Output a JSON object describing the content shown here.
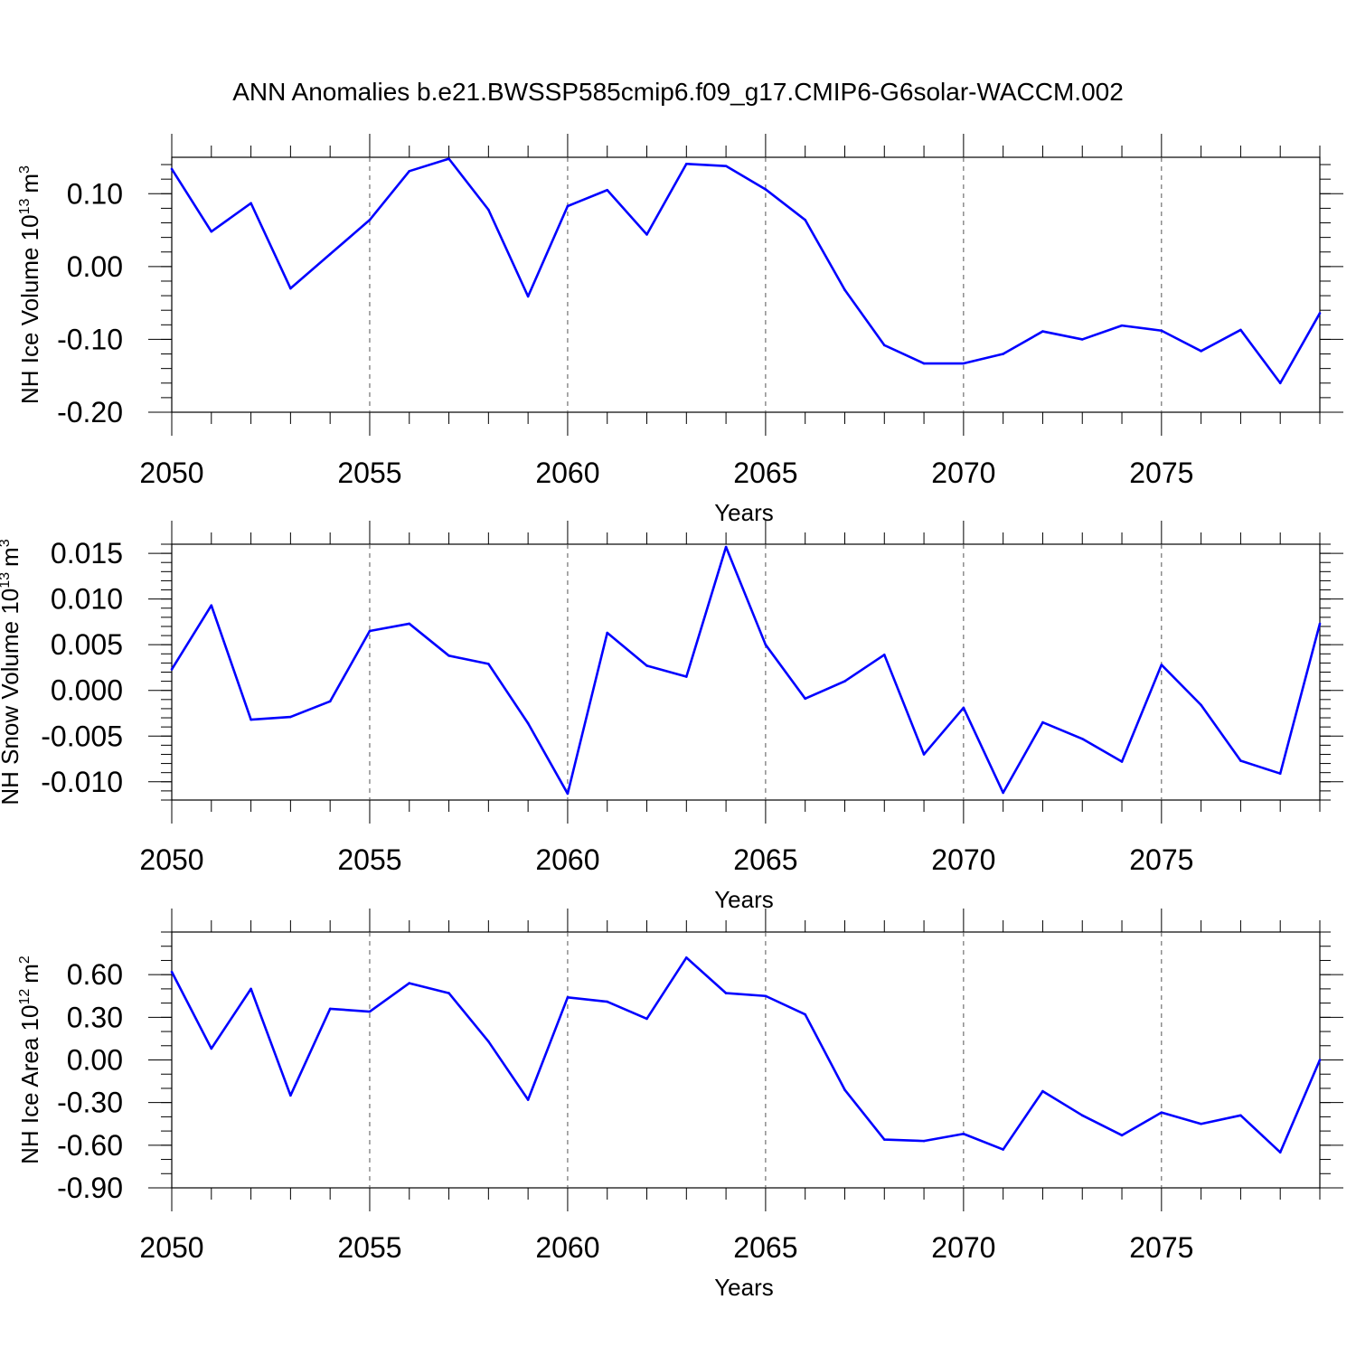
{
  "title": "ANN Anomalies b.e21.BWSSP585cmip6.f09_g17.CMIP6-G6solar-WACCM.002",
  "colors": {
    "series": "#0000ff",
    "frame": "#000000",
    "grid": "#555555"
  },
  "chart_data": [
    {
      "type": "line",
      "title": "ANN Anomalies b.e21.BWSSP585cmip6.f09_g17.CMIP6-G6solar-WACCM.002",
      "xlabel": "Years",
      "ylabel": "NH Ice Volume 10",
      "ylabel_exp": "13",
      "ylabel_unit": "m",
      "ylabel_unit_exp": "3",
      "xlim": [
        2050,
        2079
      ],
      "ylim": [
        -0.2,
        0.15
      ],
      "xticks": [
        "2050",
        "2055",
        "2060",
        "2065",
        "2070",
        "2075"
      ],
      "yticks": [
        "0.10",
        "0.00",
        "-0.10",
        "-0.20"
      ],
      "ytick_values": [
        0.1,
        0.0,
        -0.1,
        -0.2
      ],
      "ytick_minor_step": 0.02,
      "grid": "x-dashed",
      "x": [
        2050,
        2051,
        2052,
        2053,
        2054,
        2055,
        2056,
        2057,
        2058,
        2059,
        2060,
        2061,
        2062,
        2063,
        2064,
        2065,
        2066,
        2067,
        2068,
        2069,
        2070,
        2071,
        2072,
        2073,
        2074,
        2075,
        2076,
        2077,
        2078,
        2079
      ],
      "series": [
        {
          "values": [
            0.134,
            0.048,
            0.087,
            -0.03,
            0.017,
            0.064,
            0.131,
            0.148,
            0.078,
            -0.041,
            0.083,
            0.105,
            0.044,
            0.141,
            0.138,
            0.106,
            0.064,
            -0.032,
            -0.108,
            -0.133,
            -0.133,
            -0.12,
            -0.089,
            -0.1,
            -0.081,
            -0.088,
            -0.116,
            -0.087,
            -0.16,
            -0.064
          ]
        }
      ]
    },
    {
      "type": "line",
      "xlabel": "Years",
      "ylabel": "NH Snow Volume 10",
      "ylabel_exp": "13",
      "ylabel_unit": "m",
      "ylabel_unit_exp": "3",
      "xlim": [
        2050,
        2079
      ],
      "ylim": [
        -0.012,
        0.016
      ],
      "xticks": [
        "2050",
        "2055",
        "2060",
        "2065",
        "2070",
        "2075"
      ],
      "yticks": [
        "0.015",
        "0.010",
        "0.005",
        "0.000",
        "-0.005",
        "-0.010"
      ],
      "ytick_values": [
        0.015,
        0.01,
        0.005,
        0.0,
        -0.005,
        -0.01
      ],
      "ytick_minor_step": 0.001,
      "grid": "x-dashed",
      "x": [
        2050,
        2051,
        2052,
        2053,
        2054,
        2055,
        2056,
        2057,
        2058,
        2059,
        2060,
        2061,
        2062,
        2063,
        2064,
        2065,
        2066,
        2067,
        2068,
        2069,
        2070,
        2071,
        2072,
        2073,
        2074,
        2075,
        2076,
        2077,
        2078,
        2079
      ],
      "series": [
        {
          "values": [
            0.0023,
            0.0093,
            -0.0032,
            -0.0029,
            -0.0012,
            0.0065,
            0.0073,
            0.0038,
            0.0029,
            -0.0036,
            -0.0113,
            0.0063,
            0.0027,
            0.0015,
            0.0157,
            0.005,
            -0.0009,
            0.001,
            0.0039,
            -0.007,
            -0.0019,
            -0.0112,
            -0.0035,
            -0.0053,
            -0.0078,
            0.0028,
            -0.0016,
            -0.0077,
            -0.0091,
            0.0073
          ]
        }
      ]
    },
    {
      "type": "line",
      "xlabel": "Years",
      "ylabel": "NH Ice Area 10",
      "ylabel_exp": "12",
      "ylabel_unit": "m",
      "ylabel_unit_exp": "2",
      "xlim": [
        2050,
        2079
      ],
      "ylim": [
        -0.9,
        0.9
      ],
      "xticks": [
        "2050",
        "2055",
        "2060",
        "2065",
        "2070",
        "2075"
      ],
      "yticks": [
        "0.60",
        "0.30",
        "0.00",
        "-0.30",
        "-0.60",
        "-0.90"
      ],
      "ytick_values": [
        0.6,
        0.3,
        0.0,
        -0.3,
        -0.6,
        -0.9
      ],
      "ytick_minor_step": 0.1,
      "grid": "x-dashed",
      "x": [
        2050,
        2051,
        2052,
        2053,
        2054,
        2055,
        2056,
        2057,
        2058,
        2059,
        2060,
        2061,
        2062,
        2063,
        2064,
        2065,
        2066,
        2067,
        2068,
        2069,
        2070,
        2071,
        2072,
        2073,
        2074,
        2075,
        2076,
        2077,
        2078,
        2079
      ],
      "series": [
        {
          "values": [
            0.62,
            0.08,
            0.5,
            -0.25,
            0.36,
            0.34,
            0.54,
            0.47,
            0.13,
            -0.28,
            0.44,
            0.41,
            0.29,
            0.72,
            0.47,
            0.45,
            0.32,
            -0.21,
            -0.56,
            -0.57,
            -0.52,
            -0.63,
            -0.22,
            -0.39,
            -0.53,
            -0.37,
            -0.45,
            -0.39,
            -0.65,
            0.0
          ]
        }
      ]
    }
  ]
}
